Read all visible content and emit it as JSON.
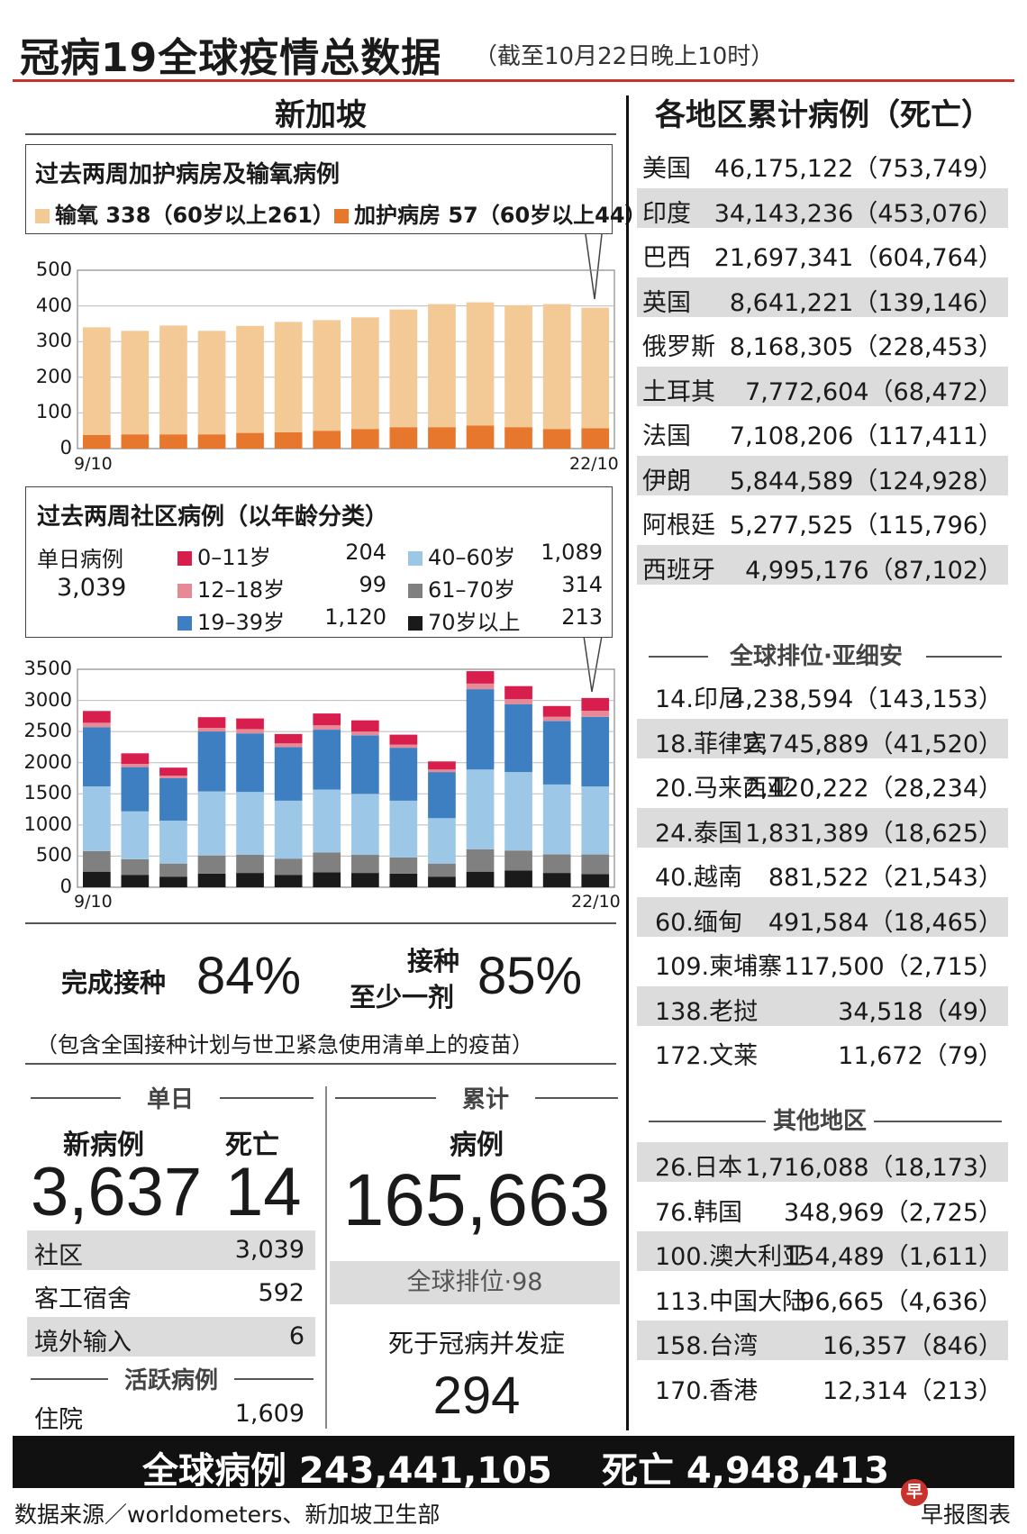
{
  "header": {
    "title": "冠病19全球疫情总数据",
    "subtitle": "（截至10月22日晚上10时）"
  },
  "singapore": {
    "heading": "新加坡",
    "icu_box": {
      "title": "过去两周加护病房及输氧病例",
      "legend_oxygen": "输氧 338（60岁以上261）",
      "legend_icu": "加护病房 57（60岁以上44）"
    },
    "community_box": {
      "title": "过去两周社区病例（以年龄分类）",
      "daily_label": "单日病例",
      "daily_value": "3,039",
      "groups": [
        {
          "label": "0–11岁",
          "value": "204"
        },
        {
          "label": "12–18岁",
          "value": "99"
        },
        {
          "label": "19–39岁",
          "value": "1,120"
        },
        {
          "label": "40–60岁",
          "value": "1,089"
        },
        {
          "label": "61–70岁",
          "value": "314"
        },
        {
          "label": "70岁以上",
          "value": "213"
        }
      ]
    },
    "vaccination": {
      "full_label": "完成接种",
      "full_value": "84%",
      "one_dose_label_1": "接种",
      "one_dose_label_2": "至少一剂",
      "one_dose_value": "85%",
      "note": "（包含全国接种计划与世卫紧急使用清单上的疫苗）"
    },
    "daily": {
      "heading": "单日",
      "new_cases_label": "新病例",
      "new_cases_value": "3,637",
      "deaths_label": "死亡",
      "deaths_value": "14",
      "rows": [
        {
          "label": "社区",
          "value": "3,039"
        },
        {
          "label": "客工宿舍",
          "value": "592"
        },
        {
          "label": "境外输入",
          "value": "6"
        }
      ],
      "active_heading": "活跃病例",
      "hospital_label": "住院",
      "hospital_value": "1,609"
    },
    "cumulative": {
      "heading": "累计",
      "cases_label": "病例",
      "cases_value": "165,663",
      "global_rank": "全球排位·98",
      "complication_label": "死于冠病并发症",
      "complication_value": "294"
    }
  },
  "regions": {
    "heading": "各地区累计病例（死亡）",
    "top": [
      {
        "name": "美国",
        "value": "46,175,122（753,749）"
      },
      {
        "name": "印度",
        "value": "34,143,236（453,076）"
      },
      {
        "name": "巴西",
        "value": "21,697,341（604,764）"
      },
      {
        "name": "英国",
        "value": "8,641,221（139,146）"
      },
      {
        "name": "俄罗斯",
        "value": "8,168,305（228,453）"
      },
      {
        "name": "土耳其",
        "value": "7,772,604（68,472）"
      },
      {
        "name": "法国",
        "value": "7,108,206（117,411）"
      },
      {
        "name": "伊朗",
        "value": "5,844,589（124,928）"
      },
      {
        "name": "阿根廷",
        "value": "5,277,525（115,796）"
      },
      {
        "name": "西班牙",
        "value": "4,995,176（87,102）"
      }
    ],
    "asean_heading": "全球排位·亚细安",
    "asean": [
      {
        "name": "14.印尼",
        "value": "4,238,594（143,153）"
      },
      {
        "name": "18.菲律宾",
        "value": "2,745,889（41,520）"
      },
      {
        "name": "20.马来西亚",
        "value": "2,420,222（28,234）"
      },
      {
        "name": "24.泰国",
        "value": "1,831,389（18,625）"
      },
      {
        "name": "40.越南",
        "value": "881,522（21,543）"
      },
      {
        "name": "60.缅甸",
        "value": "491,584（18,465）"
      },
      {
        "name": "109.柬埔寨",
        "value": "117,500（2,715）"
      },
      {
        "name": "138.老挝",
        "value": "34,518（49）"
      },
      {
        "name": "172.文莱",
        "value": "11,672（79）"
      }
    ],
    "other_heading": "其他地区",
    "other": [
      {
        "name": "26.日本",
        "value": "1,716,088（18,173）"
      },
      {
        "name": "76.韩国",
        "value": "348,969（2,725）"
      },
      {
        "name": "100.澳大利亚",
        "value": "154,489（1,611）"
      },
      {
        "name": "113.中国大陆",
        "value": "96,665（4,636）"
      },
      {
        "name": "158.台湾",
        "value": "16,357（846）"
      },
      {
        "name": "170.香港",
        "value": "12,314（213）"
      }
    ]
  },
  "footer": {
    "global_cases": "全球病例 243,441,105",
    "global_deaths": "死亡 4,948,413",
    "source": "数据来源／worldometers、新加坡卫生部",
    "brand": "早报图表"
  },
  "colors": {
    "oxygen": "#f3c995",
    "icu": "#e8772e",
    "age_0_11": "#d81e4c",
    "age_12_18": "#e78a98",
    "age_19_39": "#3d7fc1",
    "age_40_60": "#9cc7e6",
    "age_61_70": "#808080",
    "age_70_plus": "#1a1a1a",
    "accent_red": "#c8322d"
  },
  "chart_data": [
    {
      "type": "bar",
      "stacked": true,
      "title": "过去两周加护病房及输氧病例",
      "x_first": "9/10",
      "x_last": "22/10",
      "ylim": [
        0,
        500
      ],
      "yticks": [
        "0",
        "100",
        "200",
        "300",
        "400",
        "500"
      ],
      "series": [
        {
          "name": "加护病房",
          "values": [
            38,
            40,
            40,
            40,
            44,
            46,
            50,
            55,
            60,
            60,
            65,
            60,
            55,
            57
          ]
        },
        {
          "name": "输氧",
          "values": [
            302,
            290,
            305,
            290,
            300,
            309,
            310,
            313,
            330,
            345,
            345,
            342,
            350,
            338
          ]
        }
      ]
    },
    {
      "type": "bar",
      "stacked": true,
      "title": "过去两周社区病例（以年龄分类）",
      "x_first": "9/10",
      "x_last": "22/10",
      "ylim": [
        0,
        3500
      ],
      "yticks": [
        "0",
        "500",
        "1000",
        "1500",
        "2000",
        "2500",
        "3000",
        "3500"
      ],
      "series": [
        {
          "name": "70岁以上",
          "values": [
            250,
            200,
            170,
            220,
            230,
            200,
            240,
            230,
            220,
            170,
            250,
            270,
            230,
            213
          ]
        },
        {
          "name": "61–70岁",
          "values": [
            330,
            250,
            210,
            290,
            290,
            260,
            320,
            290,
            260,
            210,
            360,
            320,
            300,
            314
          ]
        },
        {
          "name": "40–60岁",
          "values": [
            1040,
            770,
            690,
            1030,
            1010,
            930,
            1010,
            980,
            910,
            730,
            1280,
            1260,
            1120,
            1089
          ]
        },
        {
          "name": "19–39岁",
          "values": [
            950,
            710,
            680,
            960,
            940,
            860,
            960,
            940,
            850,
            740,
            1290,
            1090,
            1020,
            1120
          ]
        },
        {
          "name": "12–18岁",
          "values": [
            70,
            50,
            40,
            60,
            70,
            60,
            70,
            60,
            50,
            40,
            90,
            80,
            70,
            99
          ]
        },
        {
          "name": "0–11岁",
          "values": [
            190,
            170,
            130,
            170,
            170,
            150,
            190,
            180,
            160,
            130,
            200,
            210,
            170,
            204
          ]
        }
      ]
    }
  ]
}
